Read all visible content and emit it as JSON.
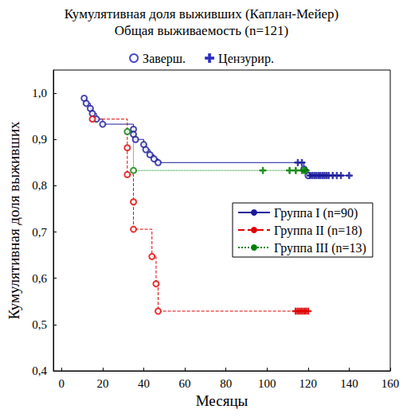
{
  "chart_data": {
    "type": "step",
    "title": "Кумулятивная доля выживших (Каплан-Мейер)",
    "subtitle": "Общая выживаемость (n=121)",
    "x_label": "Месяцы",
    "y_label": "Кумулятивная доля выживших",
    "xlim": [
      -4,
      160
    ],
    "xticks": [
      0,
      20,
      40,
      60,
      80,
      100,
      120,
      140,
      160
    ],
    "ylim": [
      0.4,
      1.05
    ],
    "yticks": [
      {
        "value": 0.4,
        "label": "0,4"
      },
      {
        "value": 0.5,
        "label": "0,5"
      },
      {
        "value": 0.6,
        "label": "0,6"
      },
      {
        "value": 0.7,
        "label": "0,7"
      },
      {
        "value": 0.8,
        "label": "0,8"
      },
      {
        "value": 0.9,
        "label": "0,9"
      },
      {
        "value": 1.0,
        "label": "1,0"
      }
    ],
    "grid": false,
    "marker_legend": [
      {
        "name": "Заверш.",
        "marker": "circle",
        "color": "#2020c0"
      },
      {
        "name": "Цензурир.",
        "marker": "plus",
        "color": "#2020c0"
      }
    ],
    "series": [
      {
        "name": "Группа I (n=90)",
        "color": "#1a1a9c",
        "line_style": "solid",
        "x": [
          11,
          12,
          14,
          15,
          17,
          20,
          35,
          35,
          36,
          40,
          41,
          43,
          45,
          47,
          115,
          117,
          118,
          120,
          121,
          122,
          123,
          124,
          125,
          126,
          127,
          128,
          129,
          130,
          132,
          134,
          136,
          140
        ],
        "values": [
          0.989,
          0.978,
          0.967,
          0.956,
          0.944,
          0.933,
          0.922,
          0.911,
          0.9,
          0.889,
          0.878,
          0.867,
          0.858,
          0.85,
          0.85,
          0.85,
          0.836,
          0.822,
          0.822,
          0.822,
          0.822,
          0.822,
          0.822,
          0.822,
          0.822,
          0.822,
          0.822,
          0.822,
          0.822,
          0.822,
          0.822,
          0.822
        ],
        "status": [
          "Заверш.",
          "Заверш.",
          "Заверш.",
          "Заверш.",
          "Заверш.",
          "Заверш.",
          "Заверш.",
          "Заверш.",
          "Заверш.",
          "Заверш.",
          "Заверш.",
          "Заверш.",
          "Заверш.",
          "Заверш.",
          "Цензурир.",
          "Цензурир.",
          "Заверш.",
          "Заверш.",
          "Цензурир.",
          "Цензурир.",
          "Цензурир.",
          "Цензурир.",
          "Цензурир.",
          "Цензурир.",
          "Цензурир.",
          "Цензурир.",
          "Цензурир.",
          "Цензурир.",
          "Цензурир.",
          "Цензурир.",
          "Цензурир.",
          "Цензурир."
        ]
      },
      {
        "name": "Группа II (n=18)",
        "color": "#e00000",
        "line_style": "dashed",
        "x": [
          15,
          32,
          32,
          35,
          35,
          44,
          46,
          47,
          114,
          115,
          116,
          117,
          118,
          119,
          120
        ],
        "values": [
          0.944,
          0.882,
          0.824,
          0.765,
          0.706,
          0.647,
          0.588,
          0.529,
          0.529,
          0.529,
          0.529,
          0.529,
          0.529,
          0.529,
          0.529
        ],
        "status": [
          "Заверш.",
          "Заверш.",
          "Заверш.",
          "Заверш.",
          "Заверш.",
          "Заверш.",
          "Заверш.",
          "Заверш.",
          "Цензурир.",
          "Цензурир.",
          "Цензурир.",
          "Цензурир.",
          "Цензурир.",
          "Цензурир.",
          "Цензурир."
        ]
      },
      {
        "name": "Группа III (n=13)",
        "color": "#008000",
        "line_style": "dotted",
        "x": [
          32,
          35,
          98,
          111,
          114,
          117,
          118,
          119
        ],
        "values": [
          0.917,
          0.833,
          0.833,
          0.833,
          0.833,
          0.833,
          0.833,
          0.833
        ],
        "status": [
          "Заверш.",
          "Заверш.",
          "Цензурир.",
          "Цензурир.",
          "Цензурир.",
          "Цензурир.",
          "Цензурир.",
          "Цензурир."
        ]
      }
    ]
  }
}
